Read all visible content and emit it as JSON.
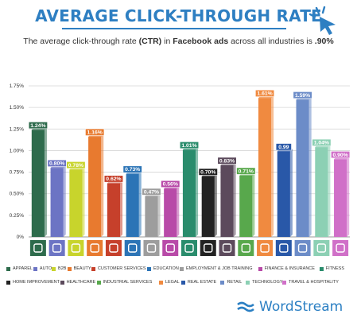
{
  "header": {
    "title": "AVERAGE CLICK-THROUGH RATE",
    "subtitle_pre": "The average click-through rate ",
    "subtitle_ctr": "(CTR)",
    "subtitle_mid": " in ",
    "subtitle_fb": "Facebook ads",
    "subtitle_post": " across all industries is ",
    "subtitle_avg": ".90%"
  },
  "brand": {
    "name": "WordStream"
  },
  "colors": {
    "accent": "#2e7fc2"
  },
  "chart_data": {
    "type": "bar",
    "title": "AVERAGE CLICK-THROUGH RATE",
    "ylim": [
      0,
      1.75
    ],
    "yticks": [
      "0%",
      "0.25%",
      "0.50%",
      "0.75%",
      "1.00%",
      "1.25%",
      "1.50%",
      "1.75%"
    ],
    "grid": true,
    "legend_position": "bottom",
    "categories": [
      "APPAREL",
      "AUTO",
      "B2B",
      "BEAUTY",
      "CUSTOMER SERVICES",
      "EDUCATION",
      "EMPLOYMENT & JOB TRAINING",
      "FINANCE & INSURANCE",
      "FITNESS",
      "HOME IMPROVEMENT",
      "HEALTHCARE",
      "INDUSTRIAL SERVICES",
      "LEGAL",
      "REAL ESTATE",
      "RETAIL",
      "TECHNOLOGY",
      "TRAVEL & HOSPITALITY"
    ],
    "values": [
      1.24,
      0.8,
      0.78,
      1.16,
      0.62,
      0.73,
      0.47,
      0.56,
      1.01,
      0.7,
      0.83,
      0.71,
      1.61,
      0.99,
      1.59,
      1.04,
      0.9
    ],
    "value_labels": [
      "1.24%",
      "0.80%",
      "0.78%",
      "1.16%",
      "0.62%",
      "0.73%",
      "0.47%",
      "0.56%",
      "1.01%",
      "0.70%",
      "0.83%",
      "0.71%",
      "1.61%",
      "0.99",
      "1.59%",
      "1.04%",
      "0.90%"
    ],
    "colors": [
      "#2e6b4c",
      "#6c74c4",
      "#c8d42c",
      "#e87a2f",
      "#c6402b",
      "#2c74b6",
      "#9d9d9d",
      "#b84aa8",
      "#2a8c6c",
      "#222222",
      "#5c4a5c",
      "#58a84c",
      "#f08a40",
      "#2958a8",
      "#6c8cc8",
      "#8cd0b4",
      "#d070c8"
    ],
    "icons": [
      "shirt-icon",
      "car-icon",
      "handshake-icon",
      "hairdryer-icon",
      "headset-icon",
      "book-icon",
      "briefcase-icon",
      "dollar-icon",
      "dumbbell-icon",
      "tools-icon",
      "firstaid-icon",
      "factory-icon",
      "gavel-icon",
      "house-icon",
      "tag-icon",
      "laptop-icon",
      "map-pin-icon"
    ],
    "legend": [
      "APPAREL",
      "AUTO",
      "B2B",
      "BEAUTY",
      "CUSTOMER SERVICES",
      "EDUCATION",
      "EMPLOYMENT & JOB TRAINING",
      "FINANCE & INSURANCE",
      "FITNESS",
      "HOME IMPROVEMENT",
      "HEALTHCARE",
      "INDUSTRIAL SERVICES",
      "LEGAL",
      "REAL ESTATE",
      "RETAIL",
      "TECHNOLOGY",
      "TRAVEL & HOSPITALITY"
    ]
  }
}
